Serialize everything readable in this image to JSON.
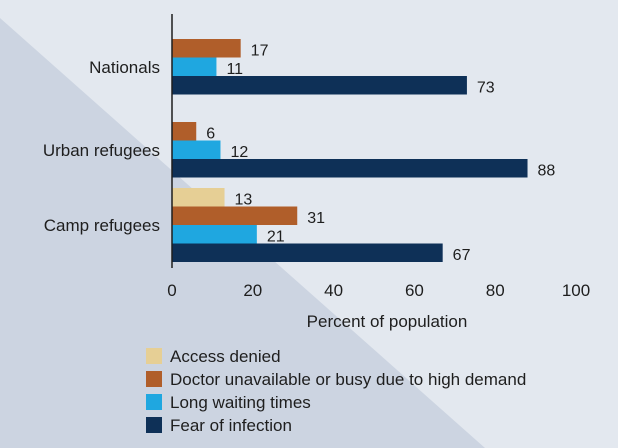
{
  "chart_data": {
    "type": "bar",
    "orientation": "horizontal",
    "categories": [
      "Nationals",
      "Urban refugees",
      "Camp refugees"
    ],
    "series": [
      {
        "name": "Access denied",
        "color": "#e6cf95",
        "values": [
          null,
          null,
          13
        ]
      },
      {
        "name": "Doctor unavailable or busy due to high demand",
        "color": "#b05e2a",
        "values": [
          17,
          6,
          31
        ]
      },
      {
        "name": "Long waiting times",
        "color": "#1fa7e0",
        "values": [
          11,
          12,
          21
        ]
      },
      {
        "name": "Fear of infection",
        "color": "#0e3057",
        "values": [
          73,
          88,
          67
        ]
      }
    ],
    "xlabel": "Percent of population",
    "ylabel": "",
    "xlim": [
      0,
      100
    ],
    "xticks": [
      0,
      20,
      40,
      60,
      80,
      100
    ],
    "grid": false,
    "legend_position": "bottom"
  }
}
